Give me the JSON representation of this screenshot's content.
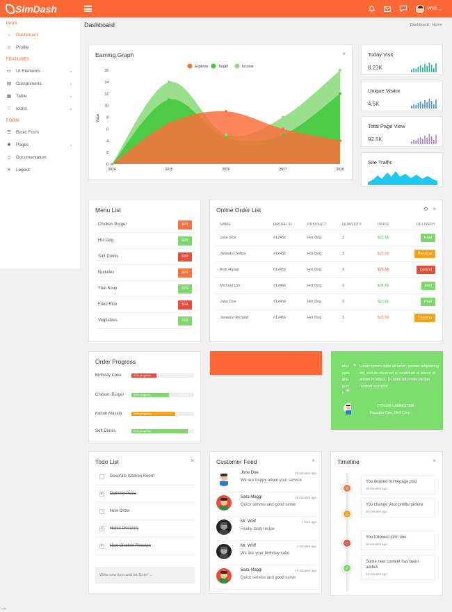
{
  "brand": {
    "name": "SimDash"
  },
  "topbar": {
    "user": "Wolf",
    "icons": [
      "bell-icon",
      "mail-icon",
      "chat-icon"
    ]
  },
  "sidebar": {
    "sections": [
      {
        "label": "MAIN",
        "items": [
          {
            "label": "Dashboard",
            "icon": "home-icon",
            "active": true
          },
          {
            "label": "Profile",
            "icon": "user-icon"
          }
        ]
      },
      {
        "label": "FEATURES",
        "items": [
          {
            "label": "UI Elements",
            "icon": "monitor-icon",
            "chevron": true
          },
          {
            "label": "Components",
            "icon": "components-icon",
            "chevron": true
          },
          {
            "label": "Table",
            "icon": "table-icon",
            "chevron": true
          },
          {
            "label": "Icons",
            "icon": "heart-icon",
            "chevron": true
          }
        ]
      },
      {
        "label": "FORM",
        "items": [
          {
            "label": "Basic Form",
            "icon": "form-icon"
          },
          {
            "label": "Pages",
            "icon": "pages-icon",
            "chevron": true
          },
          {
            "label": "Documentation",
            "icon": "document-icon"
          },
          {
            "label": "Logout",
            "icon": "logout-icon"
          }
        ]
      }
    ]
  },
  "header": {
    "title": "Dashboard",
    "breadcrumb": [
      "Dashboard",
      "Home"
    ],
    "separator": "/"
  },
  "earning": {
    "title": "Earning Graph",
    "close": "×"
  },
  "chart_data": {
    "type": "area",
    "title": "Earning Graph",
    "xlabel": "",
    "ylabel": "Value",
    "x": [
      "2014",
      "2015",
      "2016",
      "2017",
      "2018"
    ],
    "ylim": [
      0,
      16
    ],
    "yticks": [
      0,
      2,
      4,
      6,
      8,
      10,
      12,
      14,
      16
    ],
    "legend_position": "top",
    "series": [
      {
        "name": "Expense",
        "color": "#f9713c",
        "values": [
          0,
          7,
          9,
          6,
          4
        ]
      },
      {
        "name": "Target",
        "color": "#43c93e",
        "values": [
          0,
          11,
          4.5,
          5,
          12
        ]
      },
      {
        "name": "Income",
        "color": "#8fdb7e",
        "values": [
          0,
          14,
          5,
          8,
          16
        ]
      }
    ]
  },
  "stats": [
    {
      "title": "Today Visit",
      "value": "8.23K",
      "color": "#1bb39a",
      "type": "bar"
    },
    {
      "title": "Unique Visitor",
      "value": "4.5K",
      "color": "#3a8fd9",
      "type": "bar"
    },
    {
      "title": "Total Page View",
      "value": "92.5K",
      "color": "#a87bd6",
      "type": "bar"
    },
    {
      "title": "Site Traffic",
      "value": "",
      "color": "#1ec8f0",
      "type": "area"
    }
  ],
  "menu": {
    "title": "Menu List",
    "items": [
      {
        "name": "Chicken Burger",
        "price": "$21",
        "color": "#f9713c"
      },
      {
        "name": "Hot Dog",
        "price": "$15",
        "color": "#7dd86b"
      },
      {
        "name": "Soft Drinks",
        "price": "$30",
        "color": "#ea4c3b"
      },
      {
        "name": "Nudulles",
        "price": "$25",
        "color": "#f9713c"
      },
      {
        "name": "Thai Soup",
        "price": "$29",
        "color": "#7dd86b"
      },
      {
        "name": "Fried Rice",
        "price": "$14",
        "color": "#ea4c3b"
      },
      {
        "name": "Vegitables",
        "price": "$19",
        "color": "#7dd86b"
      }
    ]
  },
  "orders": {
    "title": "Online Order List",
    "columns": [
      "NAME",
      "ORDER ID",
      "PRODUCT",
      "QUANTITY",
      "PRICE",
      "DELIVERY"
    ],
    "rows": [
      {
        "name": "Jone Doe",
        "id": "#12456",
        "product": "Hot Dog",
        "qty": "3",
        "price": "$21.56",
        "price_color": "#43c93e",
        "status": "Paid",
        "status_color": "#7dd86b"
      },
      {
        "name": "Jannatul Sofiya",
        "id": "#12456",
        "product": "Hot Dog",
        "qty": "3",
        "price": "$21.56",
        "price_color": "#f9713c",
        "status": "Pending",
        "status_color": "#f7a11a"
      },
      {
        "name": "Anik Hasan",
        "id": "#12456",
        "product": "Hot Dog",
        "qty": "3",
        "price": "$21.56",
        "price_color": "#ea4c3b",
        "status": "Cancel",
        "status_color": "#ea4c3b"
      },
      {
        "name": "Micheal Qin",
        "id": "#12456",
        "product": "Hot Dog",
        "qty": "3",
        "price": "$21.56",
        "price_color": "#43c93e",
        "status": "paid",
        "status_color": "#7dd86b"
      },
      {
        "name": "John Doe",
        "id": "#12456",
        "product": "Hot Dog",
        "qty": "3",
        "price": "$21.56",
        "price_color": "#43c93e",
        "status": "Paid",
        "status_color": "#7dd86b"
      },
      {
        "name": "Jannatul Richard",
        "id": "#12456",
        "product": "Hot Dog",
        "qty": "3",
        "price": "$21.56",
        "price_color": "#f9713c",
        "status": "Pending",
        "status_color": "#f7a11a"
      }
    ]
  },
  "progress": {
    "title": "Order Progress",
    "items": [
      {
        "label": "Birthday Cake",
        "pct": 40,
        "text": "40% progress",
        "color": "#ea4c3b"
      },
      {
        "label": "Chicken Burger",
        "pct": 60,
        "text": "60% progress",
        "color": "#7dd86b"
      },
      {
        "label": "Kabab Masala",
        "pct": 70,
        "text": "70% progress",
        "color": "#f7a11a"
      },
      {
        "label": "Soft Drinks",
        "pct": 90,
        "text": "90% progress",
        "color": "#7dd86b"
      }
    ]
  },
  "quote": {
    "left_fragments": [
      "etur",
      "spor",
      "gna",
      "quis",
      "n"
    ],
    "text": "Lorem ipsum dolor sit amet, consec adipisicing elit, sed do eiusmod te incididunt ut labore et dolore m aliqua. Ut enim ad minim venian nostrud exercitat",
    "author": "TYRION LANNISTER",
    "role": "Founder Ceo, Dell Corp"
  },
  "todo": {
    "title": "Todo List",
    "items": [
      {
        "text": "Decorate Kitchen Room",
        "done": false
      },
      {
        "text": "Delivery Pizza",
        "done": true
      },
      {
        "text": "New Order",
        "done": false
      },
      {
        "text": "Home Delevery",
        "done": true
      },
      {
        "text": "New Chicken Receipe",
        "done": true
      }
    ],
    "placeholder": "Write new item and hit 'Enter'..."
  },
  "feed": {
    "title": "Customer Feed",
    "items": [
      {
        "name": "Jone Doe",
        "time": "15 minutes ago",
        "msg": "We are happy about your service"
      },
      {
        "name": "Sara Maggi",
        "time": "40 minutes ago",
        "msg": "Quick service and good serve"
      },
      {
        "name": "Mr. Wolf",
        "time": "1 hour ago",
        "msg": "Really tasty recipe"
      },
      {
        "name": "Mr. Wolf",
        "time": "1 minutes ago",
        "msg": "We like your birthday cake"
      },
      {
        "name": "Sara Maggi",
        "time": "40 minutes ago",
        "msg": "Quick service and good serve"
      }
    ]
  },
  "timeline": {
    "title": "Timeline",
    "items": [
      {
        "text": "You deleted homepage.psd",
        "time": "10 minutes ago",
        "color": "#f9713c"
      },
      {
        "text": "You change your profile picture",
        "time": "20 minutes ago",
        "color": "#f7a11a"
      },
      {
        "text": "You followed john doe",
        "time": "30 minutes ago",
        "color": "#ea4c3b"
      },
      {
        "text": "Some new content has been added.",
        "time": "15 minutes ago",
        "color": "#7dd86b"
      }
    ]
  },
  "footer": {
    "text": "-->"
  }
}
